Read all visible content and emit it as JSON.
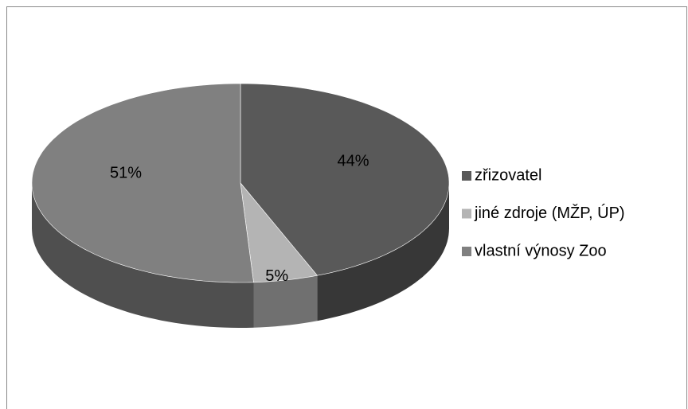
{
  "chart_data": {
    "type": "pie",
    "categories": [
      "zřizovatel",
      "jiné zdroje (MŽP, ÚP)",
      "vlastní výnosy Zoo"
    ],
    "values": [
      44,
      5,
      51
    ],
    "value_labels": [
      "44%",
      "5%",
      "51%"
    ],
    "colors": [
      "#595959",
      "#b4b4b4",
      "#808080"
    ],
    "legend": "right"
  }
}
